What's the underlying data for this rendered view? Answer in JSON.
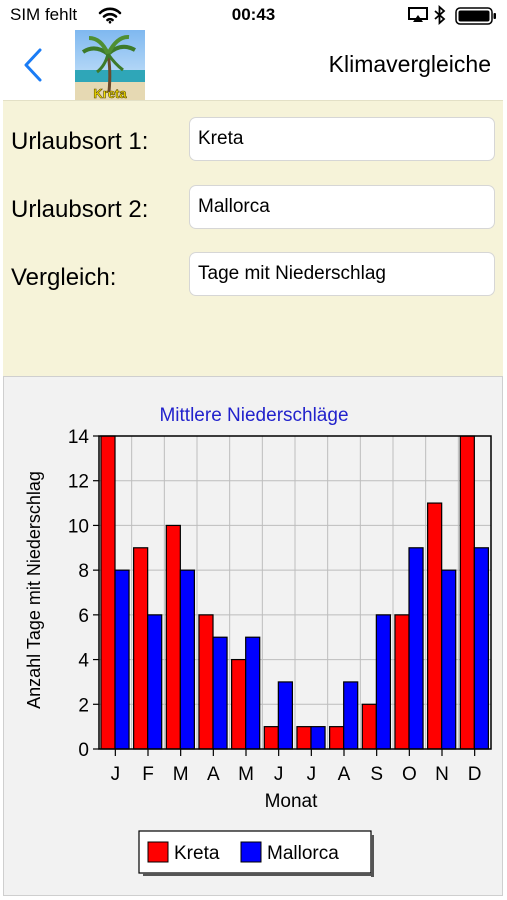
{
  "status_bar": {
    "carrier": "SIM fehlt",
    "time": "00:43"
  },
  "nav": {
    "app_icon_label": "Kreta",
    "title": "Klimavergleiche"
  },
  "form": {
    "rows": [
      {
        "label": "Urlaubsort 1:",
        "value": "Kreta"
      },
      {
        "label": "Urlaubsort 2:",
        "value": "Mallorca"
      },
      {
        "label": "Vergleich:",
        "value": "Tage mit Niederschlag"
      }
    ]
  },
  "chart_data": {
    "type": "bar",
    "title": "Mittlere Niederschläge",
    "xlabel": "Monat",
    "ylabel": "Anzahl Tage mit Niederschlag",
    "categories": [
      "J",
      "F",
      "M",
      "A",
      "M",
      "J",
      "J",
      "A",
      "S",
      "O",
      "N",
      "D"
    ],
    "series": [
      {
        "name": "Kreta",
        "color": "#ff0000",
        "values": [
          14,
          9,
          10,
          6,
          4,
          1,
          1,
          1,
          2,
          6,
          11,
          14
        ]
      },
      {
        "name": "Mallorca",
        "color": "#0000ff",
        "values": [
          8,
          6,
          8,
          5,
          5,
          3,
          1,
          3,
          6,
          9,
          8,
          9
        ]
      }
    ],
    "ylim": [
      0,
      14
    ],
    "yticks": [
      "0",
      "2",
      "4",
      "6",
      "8",
      "10",
      "12",
      "14"
    ],
    "grid": true,
    "legend_position": "bottom-center"
  },
  "colors": {
    "accent": "#1a7cf5",
    "chart_title": "#2222cc",
    "form_bg": "#f6f3d9"
  }
}
